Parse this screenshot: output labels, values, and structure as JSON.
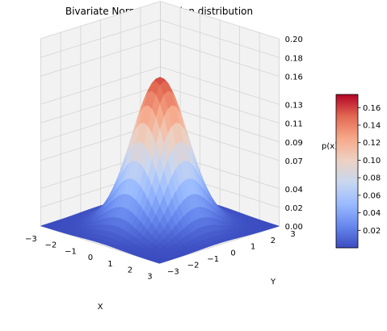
{
  "chart_data": {
    "type": "surface",
    "title": "Bivariate Normal/Gaussian distribution",
    "xlabel": "X",
    "ylabel": "Y",
    "zlabel": "p(x)",
    "xlim": [
      -3,
      3
    ],
    "ylim": [
      -3,
      3
    ],
    "zlim": [
      0,
      0.2
    ],
    "x_ticks": [
      "−3",
      "−2",
      "−1",
      "0",
      "1",
      "2",
      "3"
    ],
    "y_ticks": [
      "−3",
      "−2",
      "−1",
      "0",
      "1",
      "2",
      "3"
    ],
    "z_ticks": [
      "0.00",
      "0.02",
      "0.04",
      "0.07",
      "0.09",
      "0.11",
      "0.13",
      "0.16",
      "0.18",
      "0.20"
    ],
    "distribution": {
      "mean": [
        0,
        0
      ],
      "std": [
        1,
        1
      ],
      "peak": 0.159
    },
    "grid_resolution": 30,
    "colormap": "coolwarm",
    "colorbar": {
      "ticks": [
        "0.02",
        "0.04",
        "0.06",
        "0.08",
        "0.10",
        "0.12",
        "0.14",
        "0.16"
      ],
      "tick_values": [
        0.02,
        0.04,
        0.06,
        0.08,
        0.1,
        0.12,
        0.14,
        0.16
      ],
      "range": [
        0.0,
        0.175
      ],
      "colors": [
        "#3b4cc0",
        "#6788ee",
        "#9abbff",
        "#c9d7f0",
        "#edd1c2",
        "#f7a889",
        "#e26952",
        "#b40426"
      ]
    },
    "grid": true
  }
}
